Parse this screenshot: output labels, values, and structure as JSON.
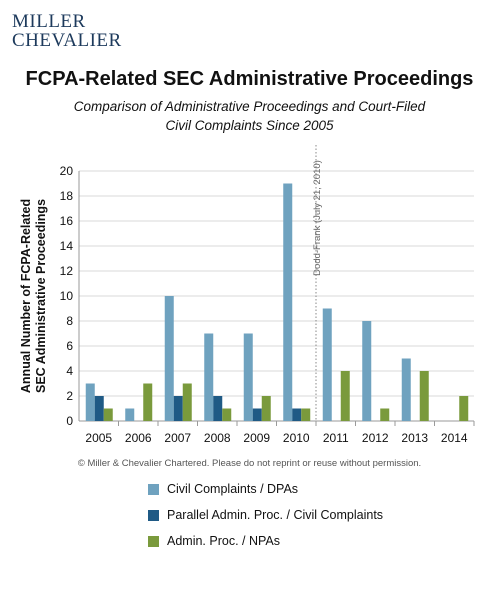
{
  "brand": {
    "line1": "MILLER",
    "line2": "CHEVALIER"
  },
  "copyright": "© Miller & Chevalier Chartered. Please do not reprint or reuse without permission.",
  "colors": {
    "civil": "#6fa2bf",
    "parallel": "#1f5a85",
    "admin": "#7a9a3c",
    "grid": "#d9d9d9",
    "axis": "#9a9a9a"
  },
  "chart_data": {
    "type": "bar",
    "title": "FCPA-Related SEC Administrative Proceedings",
    "subtitle": [
      "Comparison of Administrative Proceedings and Court-Filed",
      "Civil Complaints Since 2005"
    ],
    "ylabel": [
      "Annual Number of FCPA-Related",
      "SEC Administrative Proceedings"
    ],
    "xlabel": "",
    "ylim": [
      0,
      20
    ],
    "yticks": [
      0,
      2,
      4,
      6,
      8,
      10,
      12,
      14,
      16,
      18,
      20
    ],
    "grid": true,
    "legend_position": "bottom",
    "categories": [
      "2005",
      "2006",
      "2007",
      "2008",
      "2009",
      "2010",
      "2011",
      "2012",
      "2013",
      "2014"
    ],
    "series": [
      {
        "name": "Civil Complaints / DPAs",
        "color_key": "civil",
        "values": [
          3,
          1,
          10,
          7,
          7,
          19,
          9,
          8,
          5,
          0
        ]
      },
      {
        "name": "Parallel Admin. Proc. / Civil Complaints",
        "color_key": "parallel",
        "values": [
          2,
          0,
          2,
          2,
          1,
          1,
          0,
          0,
          0,
          0
        ]
      },
      {
        "name": "Admin. Proc. / NPAs",
        "color_key": "admin",
        "values": [
          1,
          3,
          3,
          1,
          2,
          1,
          4,
          1,
          4,
          2
        ]
      }
    ],
    "annotation": {
      "text": "Dodd-Frank (July 21, 2010)",
      "between": [
        "2010",
        "2011"
      ]
    }
  }
}
